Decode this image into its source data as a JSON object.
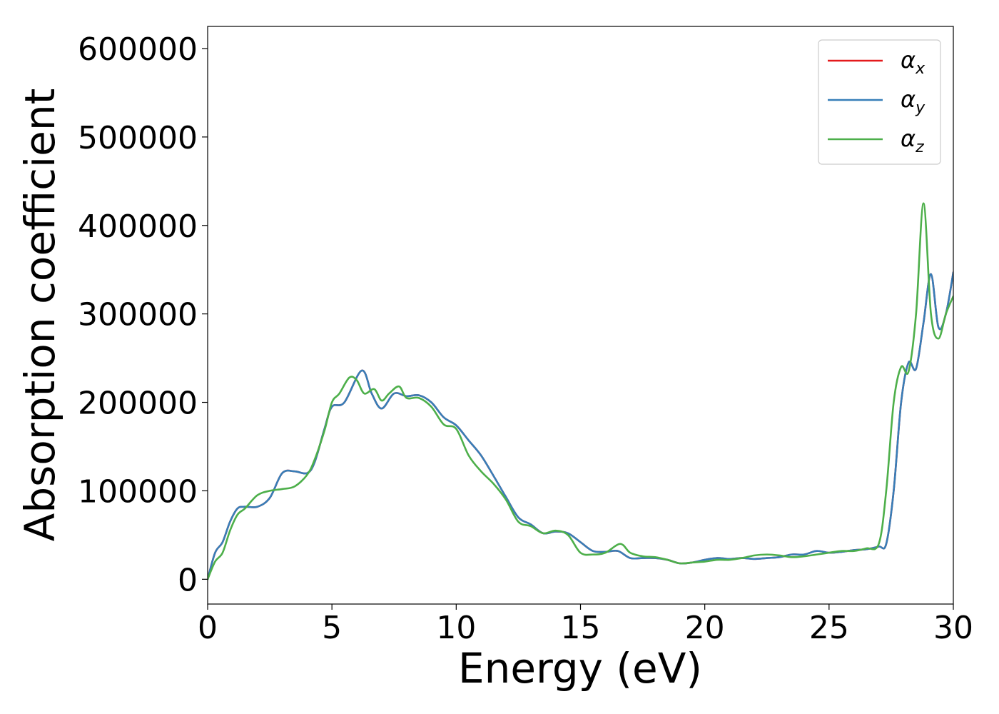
{
  "chart_data": {
    "type": "line",
    "xlabel": "Energy (eV)",
    "ylabel": "Absorption coefficient",
    "xlim": [
      0,
      30
    ],
    "ylim": [
      -28000,
      625000
    ],
    "xticks": [
      0,
      5,
      10,
      15,
      20,
      25,
      30
    ],
    "xtick_labels": [
      "0",
      "5",
      "10",
      "15",
      "20",
      "25",
      "30"
    ],
    "yticks": [
      0,
      100000,
      200000,
      300000,
      400000,
      500000,
      600000
    ],
    "ytick_labels": [
      "0",
      "100000",
      "200000",
      "300000",
      "400000",
      "500000",
      "600000"
    ],
    "grid": false,
    "legend_position": "top-right",
    "series": [
      {
        "name": "α",
        "sub": "x",
        "color": "#e41a1c",
        "x": [
          0,
          0.3,
          0.6,
          0.9,
          1.2,
          1.5,
          2.0,
          2.5,
          3.0,
          3.5,
          4.0,
          4.3,
          4.7,
          5.0,
          5.5,
          6.2,
          6.6,
          7.0,
          7.5,
          8.0,
          8.5,
          9.0,
          9.5,
          10.0,
          10.5,
          11.0,
          11.5,
          12.0,
          12.5,
          13.0,
          13.5,
          14.0,
          14.5,
          15.0,
          15.5,
          16.0,
          16.5,
          17.0,
          17.5,
          18.0,
          18.5,
          19.0,
          19.5,
          20.0,
          20.5,
          21.0,
          21.5,
          22.0,
          22.5,
          23.0,
          23.5,
          24.0,
          24.5,
          25.0,
          25.5,
          26.0,
          26.5,
          27.0,
          27.3,
          27.6,
          27.9,
          28.2,
          28.5,
          28.8,
          29.1,
          29.4,
          29.7,
          30.0
        ],
        "y": [
          0,
          30000,
          42000,
          65000,
          80000,
          82000,
          82000,
          92000,
          120000,
          122000,
          120000,
          132000,
          170000,
          195000,
          200000,
          236000,
          210000,
          193000,
          210000,
          207000,
          208000,
          200000,
          183000,
          174000,
          157000,
          140000,
          117000,
          93000,
          70000,
          62000,
          52000,
          54000,
          52000,
          42000,
          32000,
          31000,
          32000,
          24000,
          24000,
          24000,
          22000,
          18000,
          19000,
          22000,
          24000,
          23000,
          24000,
          23000,
          24000,
          25000,
          28000,
          28000,
          32000,
          30000,
          31000,
          33000,
          34000,
          37000,
          40000,
          100000,
          200000,
          245000,
          238000,
          290000,
          345000,
          285000,
          300000,
          347000
        ]
      },
      {
        "name": "α",
        "sub": "y",
        "color": "#377eb8",
        "x": [
          0,
          0.3,
          0.6,
          0.9,
          1.2,
          1.5,
          2.0,
          2.5,
          3.0,
          3.5,
          4.0,
          4.3,
          4.7,
          5.0,
          5.5,
          6.2,
          6.6,
          7.0,
          7.5,
          8.0,
          8.5,
          9.0,
          9.5,
          10.0,
          10.5,
          11.0,
          11.5,
          12.0,
          12.5,
          13.0,
          13.5,
          14.0,
          14.5,
          15.0,
          15.5,
          16.0,
          16.5,
          17.0,
          17.5,
          18.0,
          18.5,
          19.0,
          19.5,
          20.0,
          20.5,
          21.0,
          21.5,
          22.0,
          22.5,
          23.0,
          23.5,
          24.0,
          24.5,
          25.0,
          25.5,
          26.0,
          26.5,
          27.0,
          27.3,
          27.6,
          27.9,
          28.2,
          28.5,
          28.8,
          29.1,
          29.4,
          29.7,
          30.0
        ],
        "y": [
          0,
          30000,
          42000,
          65000,
          80000,
          82000,
          82000,
          92000,
          120000,
          122000,
          120000,
          132000,
          170000,
          195000,
          200000,
          236000,
          210000,
          193000,
          210000,
          207000,
          208000,
          200000,
          183000,
          174000,
          157000,
          140000,
          117000,
          93000,
          70000,
          62000,
          52000,
          54000,
          52000,
          42000,
          32000,
          31000,
          32000,
          24000,
          24000,
          24000,
          22000,
          18000,
          19000,
          22000,
          24000,
          23000,
          24000,
          23000,
          24000,
          25000,
          28000,
          28000,
          32000,
          30000,
          31000,
          33000,
          34000,
          37000,
          40000,
          100000,
          200000,
          245000,
          238000,
          290000,
          345000,
          285000,
          300000,
          347000
        ]
      },
      {
        "name": "α",
        "sub": "z",
        "color": "#4daf4a",
        "x": [
          0,
          0.3,
          0.6,
          0.9,
          1.2,
          1.5,
          2.0,
          2.5,
          3.0,
          3.5,
          4.0,
          4.3,
          4.7,
          5.0,
          5.3,
          5.7,
          6.0,
          6.3,
          6.7,
          7.0,
          7.3,
          7.7,
          8.0,
          8.5,
          9.0,
          9.5,
          10.0,
          10.5,
          11.0,
          11.5,
          12.0,
          12.5,
          13.0,
          13.5,
          14.0,
          14.5,
          15.0,
          15.5,
          16.0,
          16.6,
          17.0,
          17.5,
          18.0,
          18.5,
          19.0,
          19.5,
          20.0,
          20.5,
          21.0,
          21.5,
          22.0,
          22.5,
          23.0,
          23.5,
          24.0,
          24.5,
          25.0,
          25.5,
          26.0,
          26.5,
          27.0,
          27.3,
          27.6,
          27.9,
          28.2,
          28.5,
          28.8,
          29.1,
          29.4,
          29.7,
          30.0
        ],
        "y": [
          0,
          20000,
          30000,
          55000,
          73000,
          80000,
          95000,
          100000,
          102000,
          105000,
          118000,
          135000,
          168000,
          200000,
          210000,
          228000,
          225000,
          210000,
          215000,
          202000,
          210000,
          218000,
          205000,
          205000,
          195000,
          175000,
          170000,
          140000,
          122000,
          108000,
          90000,
          65000,
          60000,
          52000,
          55000,
          50000,
          30000,
          28000,
          30000,
          40000,
          30000,
          26000,
          25000,
          22000,
          18000,
          19000,
          20000,
          22000,
          22000,
          24000,
          27000,
          28000,
          27000,
          25000,
          26000,
          28000,
          30000,
          32000,
          32000,
          35000,
          40000,
          100000,
          200000,
          240000,
          235000,
          300000,
          425000,
          300000,
          272000,
          300000,
          320000
        ]
      }
    ]
  }
}
